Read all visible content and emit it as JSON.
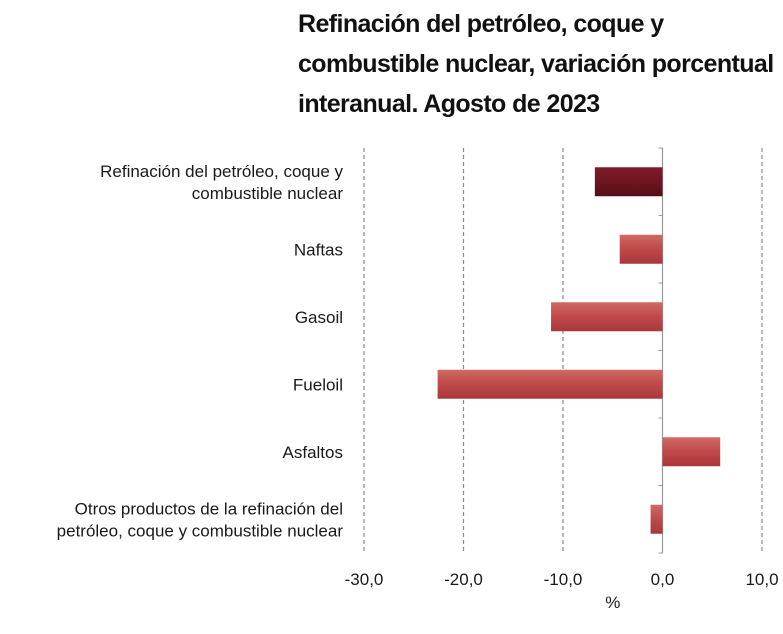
{
  "title_lines": [
    "Refinación del petróleo, coque y",
    "combustible nuclear, variación porcentual",
    "interanual. Agosto de 2023"
  ],
  "chart_data": {
    "type": "bar",
    "orientation": "horizontal",
    "title": "Refinación del petróleo, coque y combustible nuclear, variación porcentual interanual. Agosto de 2023",
    "categories": [
      [
        "Refinación del petróleo, coque y",
        "combustible nuclear"
      ],
      [
        "Naftas"
      ],
      [
        "Gasoil"
      ],
      [
        "Fueloil"
      ],
      [
        "Asfaltos"
      ],
      [
        "Otros productos de la refinación del",
        "petróleo, coque y combustible nuclear"
      ]
    ],
    "values": [
      -6.8,
      -4.3,
      -11.2,
      -22.6,
      5.8,
      -1.2
    ],
    "bar_colors": [
      "#6e1520",
      "#c0484a",
      "#c0484a",
      "#c0484a",
      "#c0484a",
      "#c0484a"
    ],
    "xlabel": "%",
    "xlim": [
      -30,
      10
    ],
    "xticks": [
      -30,
      -20,
      -10,
      0,
      10
    ],
    "xtick_labels": [
      "-30,0",
      "-20,0",
      "-10,0",
      "0,0",
      "10,0"
    ],
    "grid": "vertical dashed"
  }
}
